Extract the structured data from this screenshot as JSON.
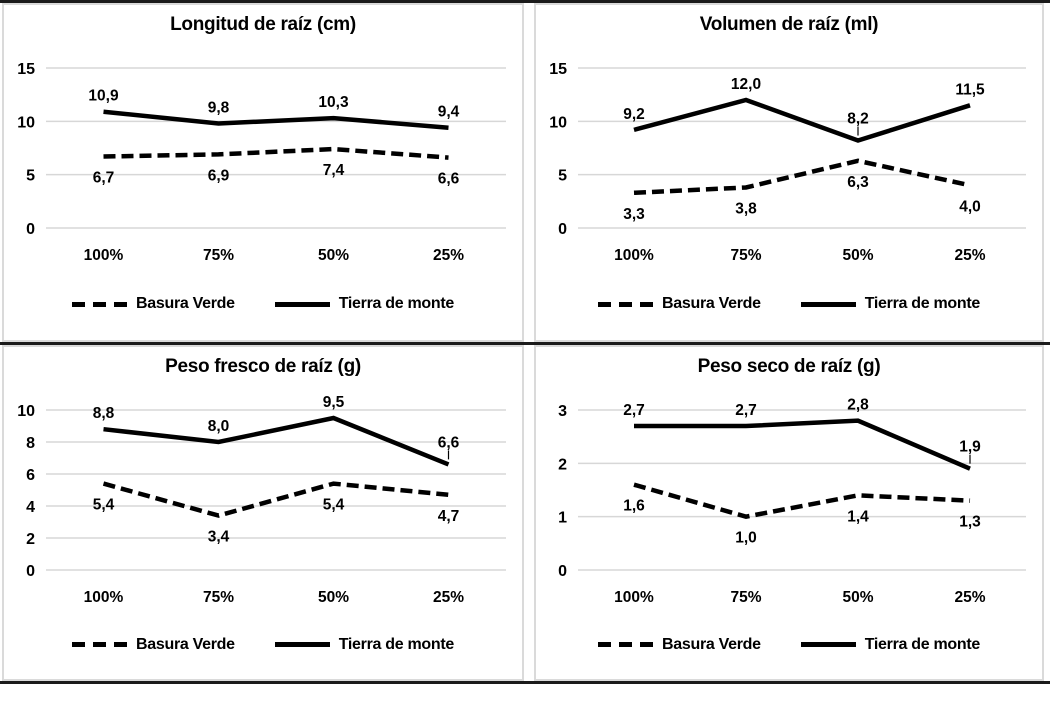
{
  "colors": {
    "line": "#000000",
    "grid": "#d7d7d7",
    "text": "#000000",
    "panel_border": "#dadada",
    "rule": "#1b1b1b"
  },
  "legend": {
    "items": [
      {
        "label": "Basura Verde",
        "style": "dashed"
      },
      {
        "label": "Tierra de monte",
        "style": "solid"
      }
    ]
  },
  "chart_data": [
    {
      "type": "line",
      "title": "Longitud de raíz (cm)",
      "categories": [
        "100%",
        "75%",
        "50%",
        "25%"
      ],
      "ylim": [
        0,
        15
      ],
      "yticks": [
        0,
        5,
        10,
        15
      ],
      "grid": true,
      "legend_position": "bottom",
      "series": [
        {
          "name": "Basura Verde",
          "style": "dashed",
          "label_position": "below",
          "values": [
            6.7,
            6.9,
            7.4,
            6.6
          ],
          "labels": [
            "6,7",
            "6,9",
            "7,4",
            "6,6"
          ],
          "leader_indices": []
        },
        {
          "name": "Tierra de monte",
          "style": "solid",
          "label_position": "above",
          "values": [
            10.9,
            9.8,
            10.3,
            9.4
          ],
          "labels": [
            "10,9",
            "9,8",
            "10,3",
            "9,4"
          ],
          "leader_indices": []
        }
      ]
    },
    {
      "type": "line",
      "title": "Volumen de raíz (ml)",
      "categories": [
        "100%",
        "75%",
        "50%",
        "25%"
      ],
      "ylim": [
        0,
        15
      ],
      "yticks": [
        0,
        5,
        10,
        15
      ],
      "grid": true,
      "legend_position": "bottom",
      "series": [
        {
          "name": "Basura Verde",
          "style": "dashed",
          "label_position": "below",
          "values": [
            3.3,
            3.8,
            6.3,
            4.0
          ],
          "labels": [
            "3,3",
            "3,8",
            "6,3",
            "4,0"
          ],
          "leader_indices": []
        },
        {
          "name": "Tierra de monte",
          "style": "solid",
          "label_position": "above",
          "values": [
            9.2,
            12.0,
            8.2,
            11.5
          ],
          "labels": [
            "9,2",
            "12,0",
            "8,2",
            "11,5"
          ],
          "leader_indices": [
            2
          ]
        }
      ]
    },
    {
      "type": "line",
      "title": "Peso fresco de raíz (g)",
      "categories": [
        "100%",
        "75%",
        "50%",
        "25%"
      ],
      "ylim": [
        0,
        10
      ],
      "yticks": [
        0,
        2,
        4,
        6,
        8,
        10
      ],
      "grid": true,
      "legend_position": "bottom",
      "series": [
        {
          "name": "Basura Verde",
          "style": "dashed",
          "label_position": "below",
          "values": [
            5.4,
            3.4,
            5.4,
            4.7
          ],
          "labels": [
            "5,4",
            "3,4",
            "5,4",
            "4,7"
          ],
          "leader_indices": []
        },
        {
          "name": "Tierra de monte",
          "style": "solid",
          "label_position": "above",
          "values": [
            8.8,
            8.0,
            9.5,
            6.6
          ],
          "labels": [
            "8,8",
            "8,0",
            "9,5",
            "6,6"
          ],
          "leader_indices": [
            3
          ]
        }
      ]
    },
    {
      "type": "line",
      "title": "Peso seco de raíz (g)",
      "categories": [
        "100%",
        "75%",
        "50%",
        "25%"
      ],
      "ylim": [
        0,
        3
      ],
      "yticks": [
        0,
        1,
        2,
        3
      ],
      "grid": true,
      "legend_position": "bottom",
      "series": [
        {
          "name": "Basura Verde",
          "style": "dashed",
          "label_position": "below",
          "values": [
            1.6,
            1.0,
            1.4,
            1.3
          ],
          "labels": [
            "1,6",
            "1,0",
            "1,4",
            "1,3"
          ],
          "leader_indices": []
        },
        {
          "name": "Tierra de monte",
          "style": "solid",
          "label_position": "above",
          "values": [
            2.7,
            2.7,
            2.8,
            1.9
          ],
          "labels": [
            "2,7",
            "2,7",
            "2,8",
            "1,9"
          ],
          "leader_indices": [
            3
          ]
        }
      ]
    }
  ]
}
